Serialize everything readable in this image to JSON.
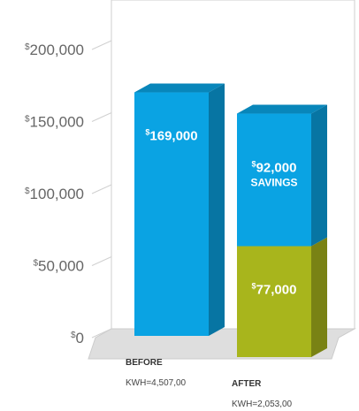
{
  "chart_data": {
    "type": "bar",
    "stacked": true,
    "categories": [
      "BEFORE",
      "AFTER"
    ],
    "category_sublabels": [
      "KWH=4,507,00",
      "KWH=2,053,00"
    ],
    "ylim": [
      0,
      200000
    ],
    "yticks": [
      0,
      50000,
      100000,
      150000,
      200000
    ],
    "ytick_labels": [
      "0",
      "50,000",
      "100,000",
      "150,000",
      "200,000"
    ],
    "currency_symbol": "$",
    "series": [
      {
        "values": [
          169000,
          77000
        ],
        "color": "#0aa3e3",
        "colors": [
          "#0aa3e3",
          "#a8b51c"
        ],
        "labels": [
          "169,000",
          "77,000"
        ],
        "sublabels": [
          "",
          ""
        ]
      },
      {
        "values": [
          0,
          92000
        ],
        "color": "#0aa3e3",
        "labels": [
          "",
          "92,000"
        ],
        "sublabels": [
          "",
          "SAVINGS"
        ]
      }
    ],
    "grid": false,
    "legend": "none"
  }
}
